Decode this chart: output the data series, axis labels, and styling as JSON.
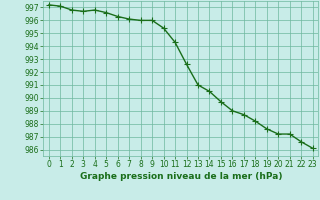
{
  "x": [
    0,
    1,
    2,
    3,
    4,
    5,
    6,
    7,
    8,
    9,
    10,
    11,
    12,
    13,
    14,
    15,
    16,
    17,
    18,
    19,
    20,
    21,
    22,
    23
  ],
  "y": [
    997.2,
    997.1,
    996.8,
    996.7,
    996.8,
    996.6,
    996.3,
    996.1,
    996.0,
    996.0,
    995.4,
    994.3,
    992.6,
    991.0,
    990.5,
    989.7,
    989.0,
    988.7,
    988.2,
    987.6,
    987.2,
    987.2,
    986.6,
    986.1
  ],
  "line_color": "#1a6e1a",
  "marker": "+",
  "marker_color": "#1a6e1a",
  "bg_color": "#c8ece8",
  "grid_color": "#6db89e",
  "xlabel": "Graphe pression niveau de la mer (hPa)",
  "xlabel_color": "#1a6e1a",
  "tick_color": "#1a6e1a",
  "ylim": [
    985.5,
    997.5
  ],
  "xlim": [
    -0.5,
    23.5
  ],
  "yticks": [
    986,
    987,
    988,
    989,
    990,
    991,
    992,
    993,
    994,
    995,
    996,
    997
  ],
  "xticks": [
    0,
    1,
    2,
    3,
    4,
    5,
    6,
    7,
    8,
    9,
    10,
    11,
    12,
    13,
    14,
    15,
    16,
    17,
    18,
    19,
    20,
    21,
    22,
    23
  ],
  "line_width": 1.0,
  "marker_size": 4,
  "tick_fontsize": 5.5,
  "xlabel_fontsize": 6.5
}
